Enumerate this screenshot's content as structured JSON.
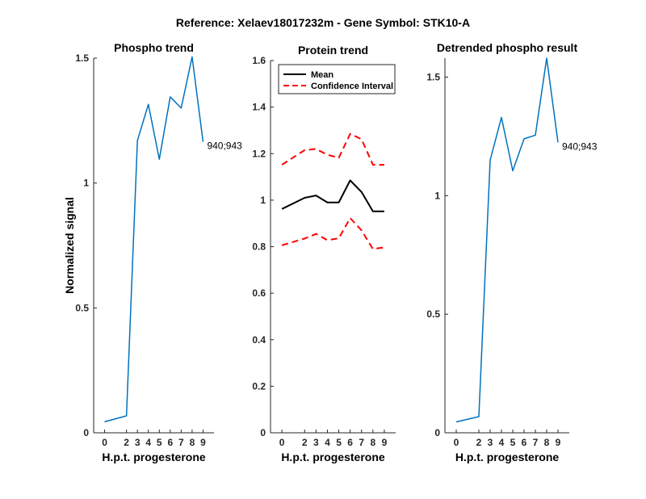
{
  "figure": {
    "title": "Reference:  Xelaev18017232m - Gene Symbol:  STK10-A"
  },
  "chart_data": [
    {
      "type": "line",
      "title": "Phospho trend",
      "xlabel": "H.p.t. progesterone",
      "ylabel": "Normalized signal",
      "x": [
        0,
        2,
        3,
        4,
        5,
        6,
        7,
        8,
        9
      ],
      "xticks": [
        0,
        2,
        3,
        4,
        5,
        6,
        7,
        8,
        9
      ],
      "xlim": [
        -1,
        10
      ],
      "ylim": [
        0,
        1.5
      ],
      "yticks": [
        0,
        0.5,
        1,
        1.5
      ],
      "ytick_labels": [
        "0",
        "0.5",
        "1",
        "1.5"
      ],
      "series": [
        {
          "name": "940;943",
          "color": "#0072BD",
          "dash": "solid",
          "values": [
            0.044,
            0.068,
            1.17,
            1.315,
            1.095,
            1.345,
            1.3,
            1.505,
            1.165
          ]
        }
      ],
      "annotation": {
        "text": "940;943",
        "x": 9,
        "y": 1.165
      }
    },
    {
      "type": "line",
      "title": "Protein trend",
      "xlabel": "H.p.t. progesterone",
      "ylabel": "",
      "x": [
        0,
        2,
        3,
        4,
        5,
        6,
        7,
        8,
        9
      ],
      "xticks": [
        0,
        2,
        3,
        4,
        5,
        6,
        7,
        8,
        9
      ],
      "xlim": [
        -1,
        10
      ],
      "ylim": [
        0,
        1.6
      ],
      "yticks": [
        0,
        0.2,
        0.4,
        0.6,
        0.8,
        1,
        1.2,
        1.4,
        1.6
      ],
      "ytick_labels": [
        "0",
        "0.2",
        "0.4",
        "0.6",
        "0.8",
        "1",
        "1.2",
        "1.4",
        "1.6"
      ],
      "legend": {
        "position": "top-left",
        "entries": [
          "Mean",
          "Confidence Interval"
        ]
      },
      "series": [
        {
          "name": "Mean",
          "color": "#000000",
          "dash": "solid",
          "values": [
            0.962,
            1.01,
            1.02,
            0.99,
            0.99,
            1.085,
            1.035,
            0.952,
            0.952
          ]
        },
        {
          "name": "Confidence Interval",
          "color": "#FF0000",
          "dash": "dashed",
          "values": [
            1.152,
            1.215,
            1.22,
            1.195,
            1.182,
            1.285,
            1.262,
            1.152,
            1.152
          ]
        },
        {
          "name": "Confidence Interval (lower)",
          "color": "#FF0000",
          "dash": "dashed",
          "values": [
            0.806,
            0.835,
            0.855,
            0.828,
            0.836,
            0.923,
            0.87,
            0.79,
            0.797
          ]
        }
      ]
    },
    {
      "type": "line",
      "title": "Detrended phospho result",
      "xlabel": "H.p.t. progesterone",
      "ylabel": "",
      "x": [
        0,
        2,
        3,
        4,
        5,
        6,
        7,
        8,
        9
      ],
      "xticks": [
        0,
        2,
        3,
        4,
        5,
        6,
        7,
        8,
        9
      ],
      "xlim": [
        -1,
        10
      ],
      "ylim": [
        0,
        1.58
      ],
      "yticks": [
        0,
        0.5,
        1,
        1.5
      ],
      "ytick_labels": [
        "0",
        "0.5",
        "1",
        "1.5"
      ],
      "series": [
        {
          "name": "940;943",
          "color": "#0072BD",
          "dash": "solid",
          "values": [
            0.046,
            0.068,
            1.15,
            1.33,
            1.105,
            1.24,
            1.255,
            1.58,
            1.225
          ]
        }
      ],
      "annotation": {
        "text": "940;943",
        "x": 9,
        "y": 1.225
      }
    }
  ]
}
